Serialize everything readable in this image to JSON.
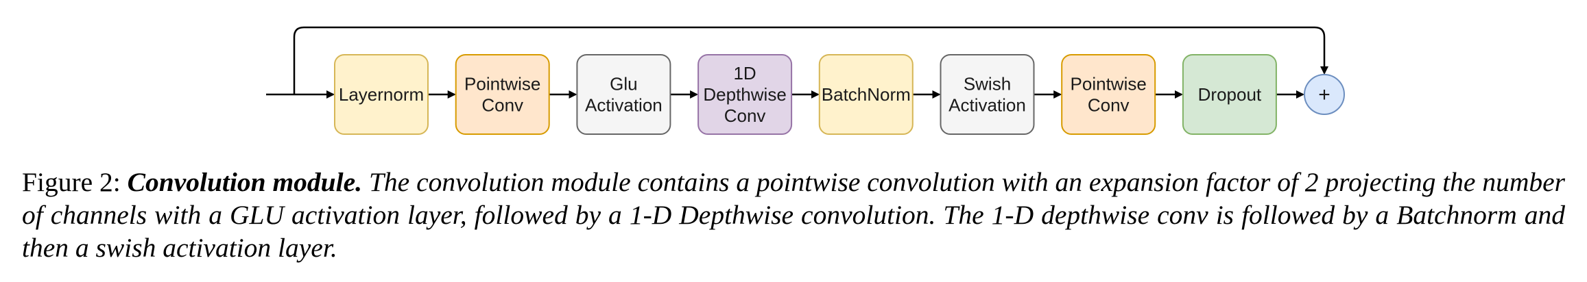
{
  "diagram": {
    "blocks": [
      {
        "id": "layernorm",
        "lines": [
          "Layernorm"
        ],
        "fill": "#fff2cc",
        "stroke": "#d6b656"
      },
      {
        "id": "pointwise-conv-1",
        "lines": [
          "Pointwise",
          "Conv"
        ],
        "fill": "#ffe6cc",
        "stroke": "#d79b00"
      },
      {
        "id": "glu-activation",
        "lines": [
          "Glu",
          "Activation"
        ],
        "fill": "#f5f5f5",
        "stroke": "#666666"
      },
      {
        "id": "depthwise-conv",
        "lines": [
          "1D",
          "Depthwise",
          "Conv"
        ],
        "fill": "#e1d5e7",
        "stroke": "#9673a6"
      },
      {
        "id": "batchnorm",
        "lines": [
          "BatchNorm"
        ],
        "fill": "#fff2cc",
        "stroke": "#d6b656"
      },
      {
        "id": "swish-activation",
        "lines": [
          "Swish",
          "Activation"
        ],
        "fill": "#f5f5f5",
        "stroke": "#666666"
      },
      {
        "id": "pointwise-conv-2",
        "lines": [
          "Pointwise",
          "Conv"
        ],
        "fill": "#ffe6cc",
        "stroke": "#d79b00"
      },
      {
        "id": "dropout",
        "lines": [
          "Dropout"
        ],
        "fill": "#d5e8d4",
        "stroke": "#82b366"
      }
    ],
    "sum_node": {
      "symbol": "+",
      "fill": "#dae8fc",
      "stroke": "#6c8ebf"
    },
    "arrow_color": "#000000"
  },
  "caption": {
    "label": "Figure 2:",
    "title": "Convolution module.",
    "body": "The convolution module contains a pointwise convolution with an expansion factor of 2 projecting the number of channels with a GLU activation layer, followed by a 1-D Depthwise convolution. The 1-D depthwise conv is followed by a Batchnorm and then a swish activation layer."
  }
}
